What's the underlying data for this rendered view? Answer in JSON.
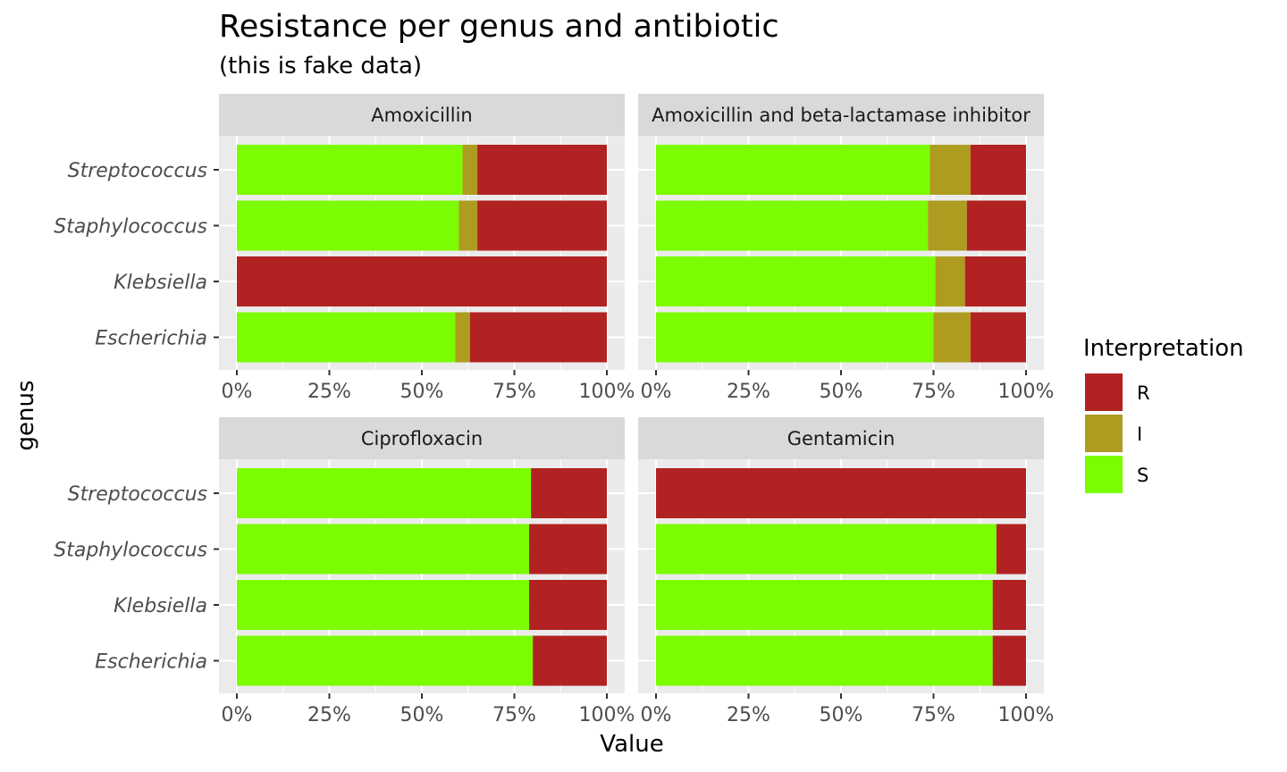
{
  "chart_data": {
    "type": "bar",
    "orientation": "horizontal",
    "stacked": true,
    "title": "Resistance per genus and antibiotic",
    "subtitle": "(this is fake data)",
    "xlabel": "Value",
    "ylabel": "genus",
    "xlim": [
      0,
      1
    ],
    "x_ticks": [
      "0%",
      "25%",
      "50%",
      "75%",
      "100%"
    ],
    "categories": [
      "Streptococcus",
      "Staphylococcus",
      "Klebsiella",
      "Escherichia"
    ],
    "legend": {
      "title": "Interpretation",
      "position": "right",
      "entries": [
        {
          "name": "R",
          "color": "#b22222"
        },
        {
          "name": "I",
          "color": "#ae9c20"
        },
        {
          "name": "S",
          "color": "#7cfc00"
        }
      ]
    },
    "stack_order": [
      "S",
      "I",
      "R"
    ],
    "grid": true,
    "panels": [
      {
        "title": "Amoxicillin",
        "series": [
          {
            "name": "S",
            "values": [
              0.61,
              0.6,
              0.0,
              0.59
            ]
          },
          {
            "name": "I",
            "values": [
              0.04,
              0.05,
              0.0,
              0.04
            ]
          },
          {
            "name": "R",
            "values": [
              0.35,
              0.35,
              1.0,
              0.37
            ]
          }
        ]
      },
      {
        "title": "Amoxicillin and beta-lactamase inhibitor",
        "series": [
          {
            "name": "S",
            "values": [
              0.74,
              0.735,
              0.755,
              0.75
            ]
          },
          {
            "name": "I",
            "values": [
              0.11,
              0.105,
              0.08,
              0.1
            ]
          },
          {
            "name": "R",
            "values": [
              0.15,
              0.16,
              0.165,
              0.15
            ]
          }
        ]
      },
      {
        "title": "Ciprofloxacin",
        "series": [
          {
            "name": "S",
            "values": [
              0.795,
              0.79,
              0.79,
              0.8
            ]
          },
          {
            "name": "I",
            "values": [
              0.0,
              0.0,
              0.0,
              0.0
            ]
          },
          {
            "name": "R",
            "values": [
              0.205,
              0.21,
              0.21,
              0.2
            ]
          }
        ]
      },
      {
        "title": "Gentamicin",
        "series": [
          {
            "name": "S",
            "values": [
              0.0,
              0.92,
              0.91,
              0.91
            ]
          },
          {
            "name": "I",
            "values": [
              0.0,
              0.0,
              0.0,
              0.0
            ]
          },
          {
            "name": "R",
            "values": [
              1.0,
              0.08,
              0.09,
              0.09
            ]
          }
        ]
      }
    ]
  }
}
